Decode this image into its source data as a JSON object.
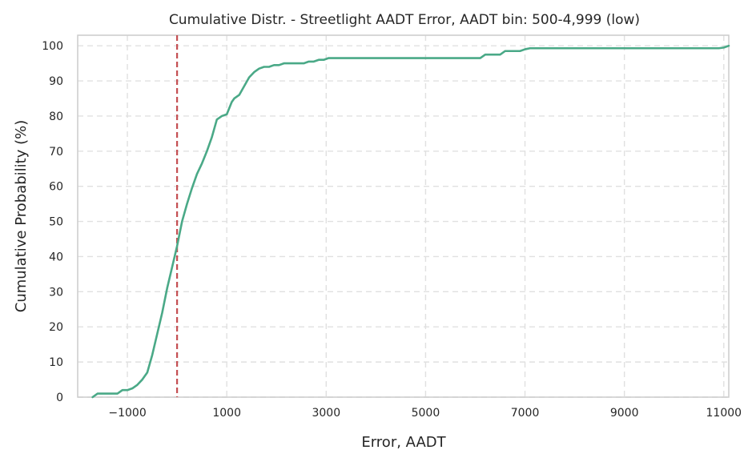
{
  "chart_data": {
    "type": "line",
    "title": "Cumulative Distr. - Streetlight AADT Error, AADT bin: 500-4,999 (low)",
    "xlabel": "Error, AADT",
    "ylabel": "Cumulative Probability (%)",
    "xlim": [
      -2000,
      11100
    ],
    "ylim": [
      0,
      103
    ],
    "xticks": [
      -1000,
      1000,
      3000,
      5000,
      7000,
      9000,
      11000
    ],
    "xtick_labels": [
      "−1000",
      "1000",
      "3000",
      "5000",
      "7000",
      "9000",
      "11000"
    ],
    "yticks": [
      0,
      10,
      20,
      30,
      40,
      50,
      60,
      70,
      80,
      90,
      100
    ],
    "ytick_labels": [
      "0",
      "10",
      "20",
      "30",
      "40",
      "50",
      "60",
      "70",
      "80",
      "90",
      "100"
    ],
    "grid": true,
    "reference_line": {
      "x": 0,
      "color": "#c44e52",
      "style": "dashed"
    },
    "series": [
      {
        "color": "#4aa987",
        "x": [
          -1700,
          -1600,
          -1500,
          -1400,
          -1300,
          -1200,
          -1100,
          -1000,
          -900,
          -800,
          -700,
          -600,
          -500,
          -400,
          -300,
          -200,
          -100,
          0,
          100,
          200,
          300,
          400,
          500,
          600,
          700,
          800,
          900,
          1000,
          1100,
          1150,
          1250,
          1350,
          1450,
          1550,
          1650,
          1750,
          1850,
          1950,
          2050,
          2150,
          2250,
          2350,
          2450,
          2550,
          2650,
          2750,
          2850,
          2950,
          3050,
          3150,
          3250,
          3350,
          3500,
          4000,
          5000,
          6000,
          6100,
          6200,
          6300,
          6400,
          6500,
          6600,
          6700,
          6800,
          6900,
          7000,
          7100,
          8000,
          9000,
          10000,
          10900,
          11000,
          11100
        ],
        "y": [
          0,
          1,
          1,
          1,
          1,
          1,
          2,
          2,
          2.5,
          3.5,
          5,
          7,
          12,
          18,
          24,
          31,
          37,
          43,
          50,
          55,
          59.5,
          63.5,
          66.5,
          70,
          74,
          79,
          80,
          80.5,
          84,
          85,
          86,
          88.5,
          91,
          92.5,
          93.5,
          94,
          94,
          94.5,
          94.5,
          95,
          95,
          95,
          95,
          95,
          95.5,
          95.5,
          96,
          96,
          96.5,
          96.5,
          96.5,
          96.5,
          96.5,
          96.5,
          96.5,
          96.5,
          96.5,
          97.5,
          97.5,
          97.5,
          97.5,
          98.5,
          98.5,
          98.5,
          98.5,
          99,
          99.3,
          99.3,
          99.3,
          99.3,
          99.3,
          99.5,
          100
        ]
      }
    ]
  }
}
